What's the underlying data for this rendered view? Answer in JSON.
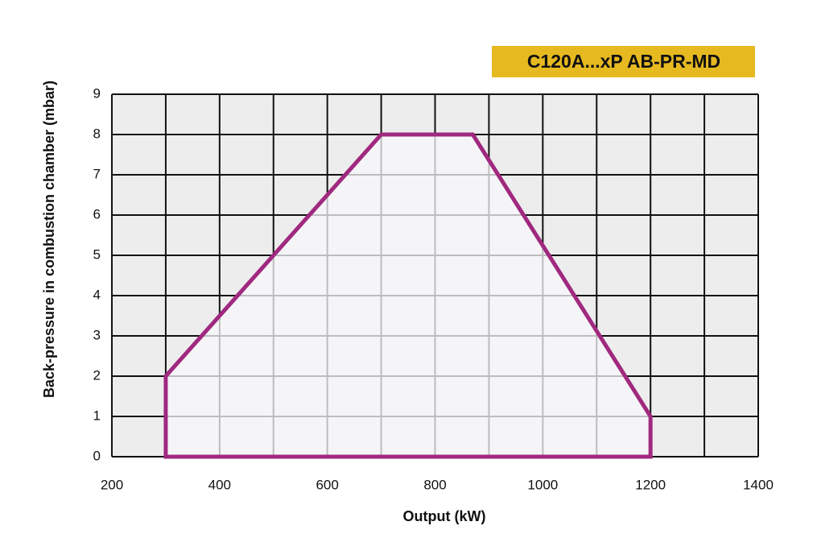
{
  "chart_data": {
    "type": "area",
    "title": "C120A...xP AB-PR-MD",
    "x_label": "Output (kW)",
    "y_label": "Back-pressure in combustion chamber (mbar)",
    "xlim": [
      200,
      1400
    ],
    "ylim": [
      0,
      9
    ],
    "xticks": [
      200,
      400,
      600,
      800,
      1000,
      1200,
      1400
    ],
    "yticks": [
      0,
      1,
      2,
      3,
      4,
      5,
      6,
      7,
      8,
      9
    ],
    "xgrid": [
      200,
      300,
      400,
      500,
      600,
      700,
      800,
      900,
      1000,
      1100,
      1200,
      1300,
      1400
    ],
    "grid": true,
    "title_color": "#e6b920",
    "series": [
      {
        "color": "#a0297f",
        "x": [
          300,
          300,
          700,
          870,
          1200,
          1200
        ],
        "values": [
          0,
          2,
          8,
          8,
          1,
          0
        ]
      }
    ]
  }
}
